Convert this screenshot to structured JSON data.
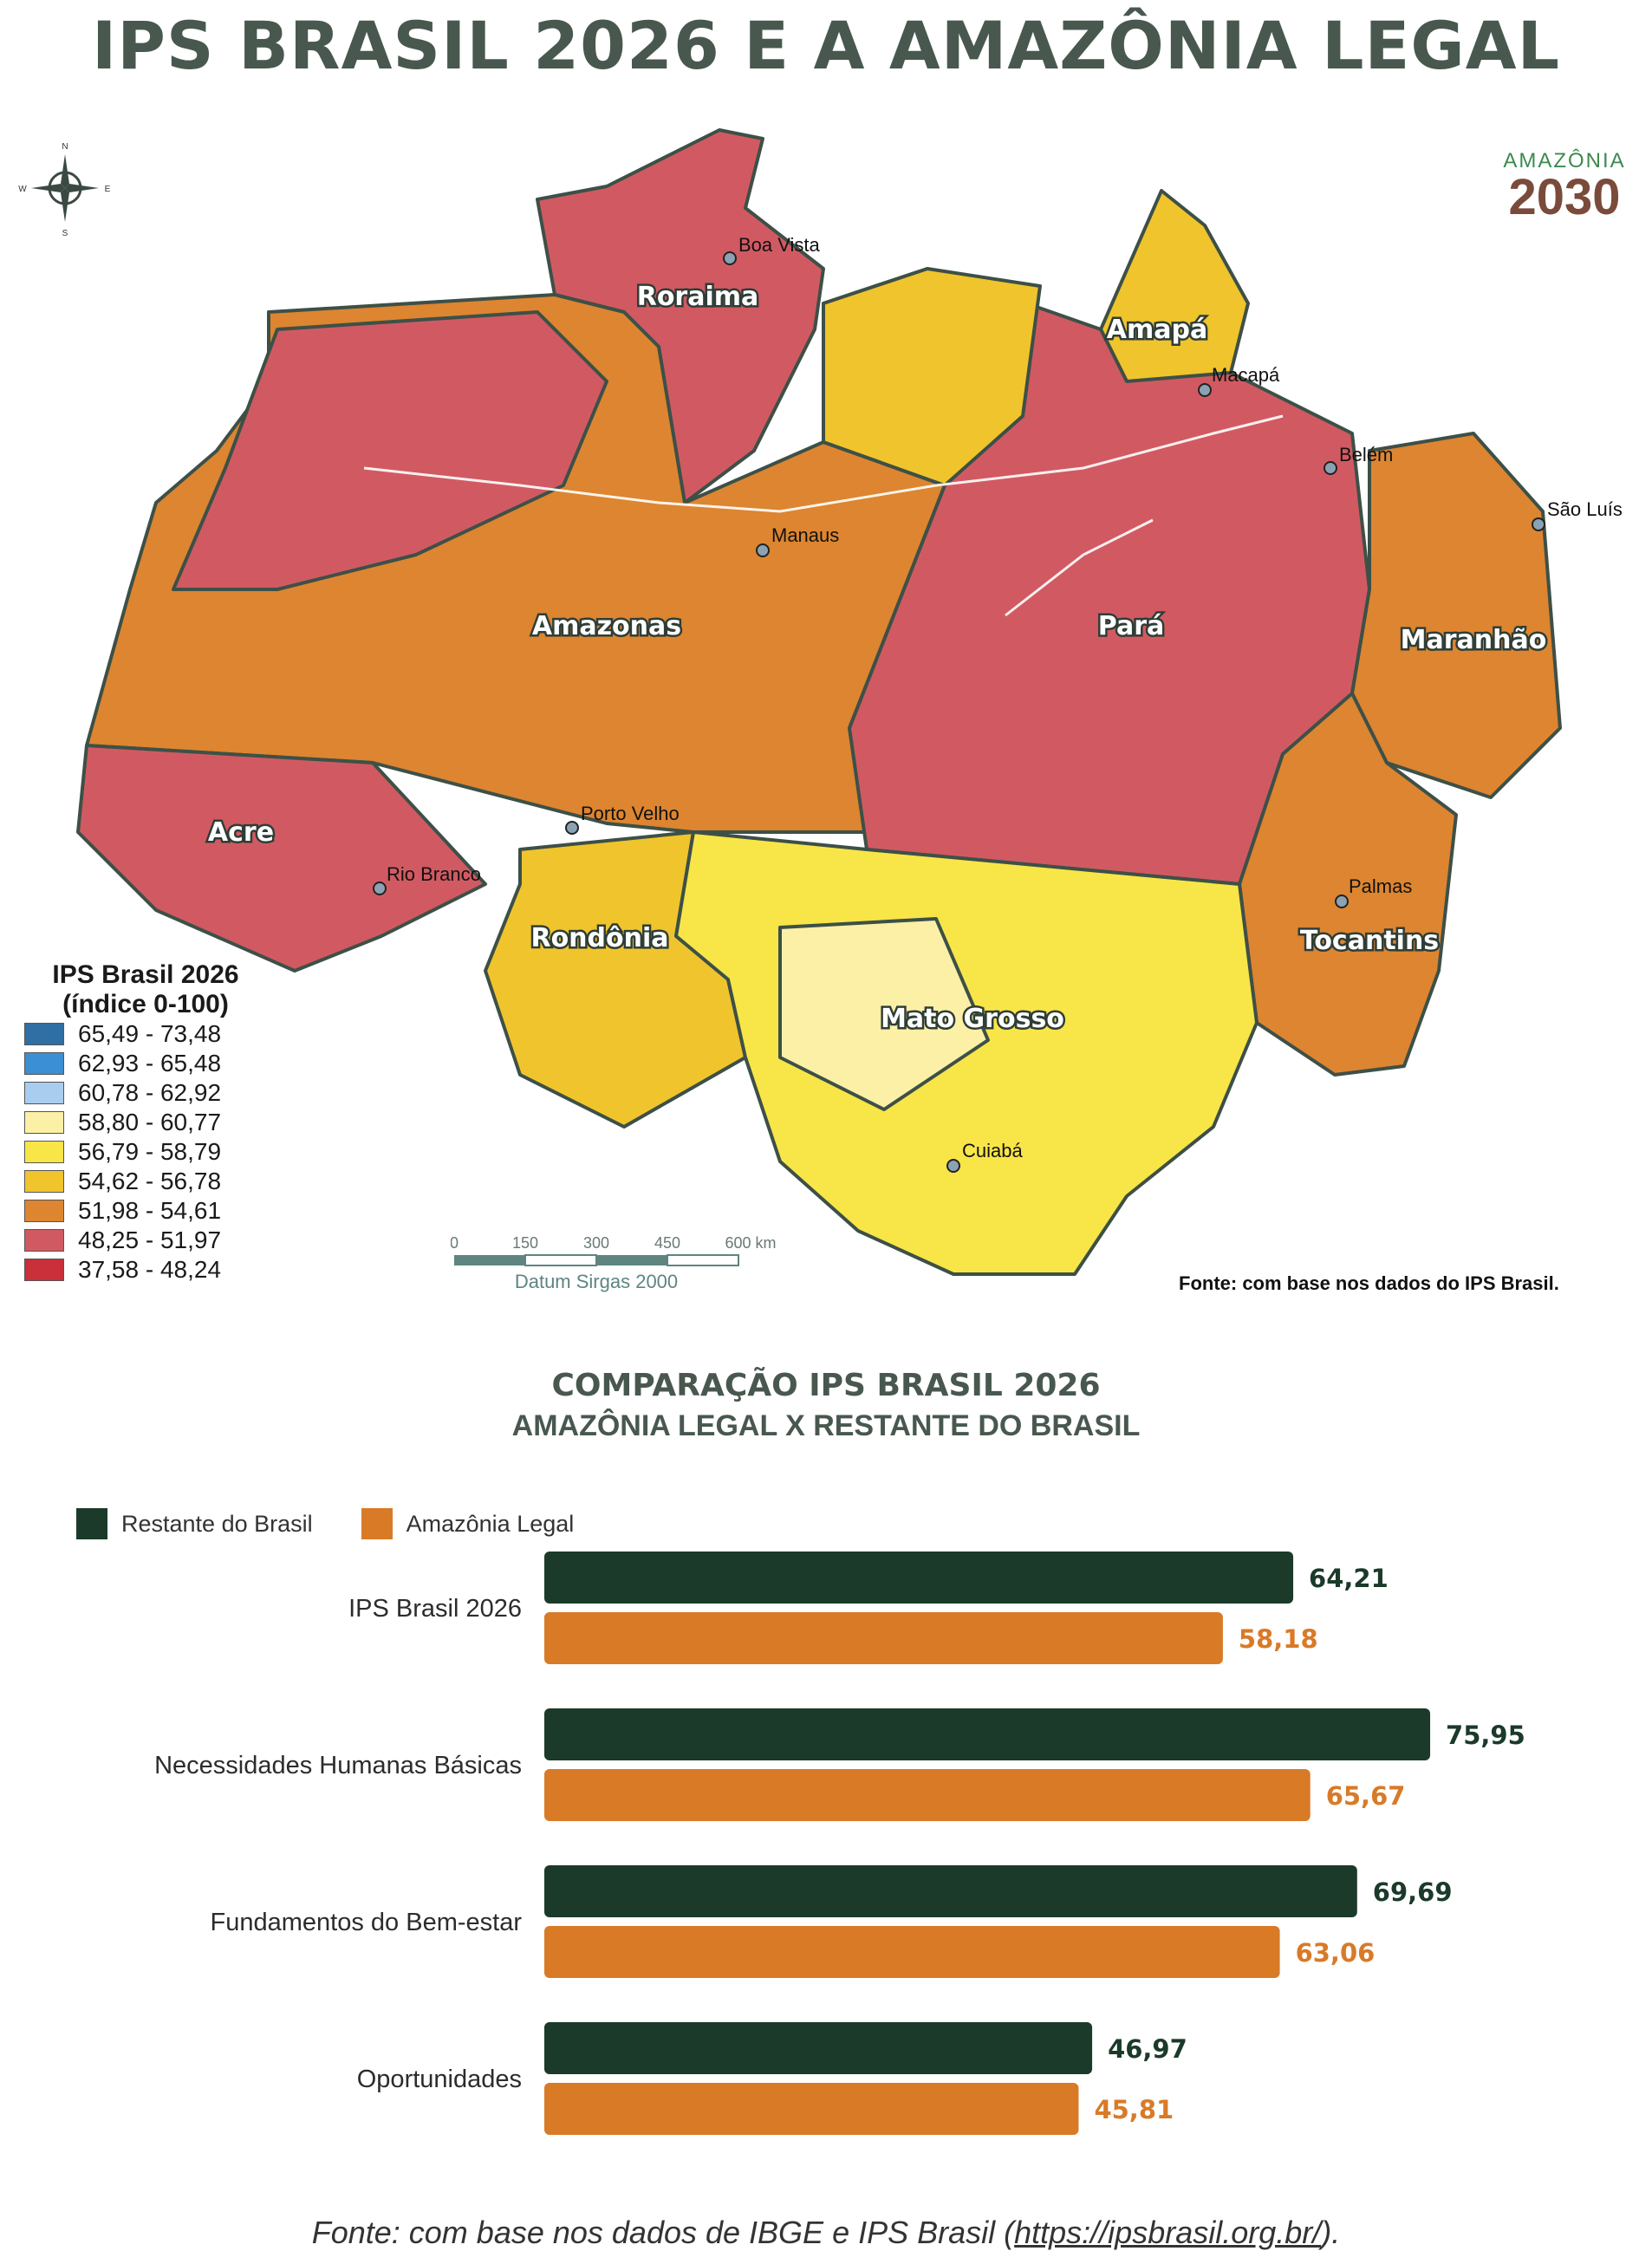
{
  "title": "IPS BRASIL 2026 E A AMAZÔNIA LEGAL",
  "logo": {
    "top": "AMAZÔNIA",
    "bottom": "2030"
  },
  "compass": {
    "n": "N",
    "s": "S",
    "e": "E",
    "w": "W"
  },
  "map": {
    "states": [
      "Roraima",
      "Amapá",
      "Amazonas",
      "Pará",
      "Maranhão",
      "Acre",
      "Rondônia",
      "Tocantins",
      "Mato Grosso"
    ],
    "cities": [
      "Boa Vista",
      "Macapá",
      "Belém",
      "São Luís",
      "Manaus",
      "Porto Velho",
      "Rio Branco",
      "Palmas",
      "Cuiabá"
    ],
    "legend_title_1": "IPS Brasil 2026",
    "legend_title_2": "(índice 0-100)",
    "legend": [
      {
        "label": "65,49 - 73,48",
        "color": "#2f6fa3"
      },
      {
        "label": "62,93 - 65,48",
        "color": "#3b8fd4"
      },
      {
        "label": "60,78 - 62,92",
        "color": "#a9cdee"
      },
      {
        "label": "58,80 - 60,77",
        "color": "#fbf0a6"
      },
      {
        "label": "56,79 - 58,79",
        "color": "#f8e548"
      },
      {
        "label": "54,62 - 56,78",
        "color": "#f0c42c"
      },
      {
        "label": "51,98 - 54,61",
        "color": "#dd8530"
      },
      {
        "label": "48,25 - 51,97",
        "color": "#d15a62"
      },
      {
        "label": "37,58 - 48,24",
        "color": "#c9303a"
      }
    ],
    "scale_ticks": [
      "0",
      "150",
      "300",
      "450",
      "600 km"
    ],
    "datum": "Datum Sirgas 2000",
    "source": "Fonte: com base nos dados do IPS Brasil."
  },
  "chart_title": "COMPARAÇÃO IPS BRASIL 2026",
  "chart_subtitle": "AMAZÔNIA LEGAL X RESTANTE DO BRASIL",
  "chart_data": {
    "type": "bar",
    "orientation": "horizontal",
    "categories": [
      "IPS Brasil 2026",
      "Necessidades Humanas Básicas",
      "Fundamentos do Bem-estar",
      "Oportunidades"
    ],
    "series": [
      {
        "name": "Restante do Brasil",
        "color": "#1b3a2a",
        "values": [
          64.21,
          75.95,
          69.69,
          46.97
        ],
        "labels": [
          "64,21",
          "75,95",
          "69,69",
          "46,97"
        ]
      },
      {
        "name": "Amazônia Legal",
        "color": "#d97a27",
        "values": [
          58.18,
          65.67,
          63.06,
          45.81
        ],
        "labels": [
          "58,18",
          "65,67",
          "63,06",
          "45,81"
        ]
      }
    ],
    "xlim": [
      0,
      81
    ],
    "legend_position": "top-left",
    "grid": false
  },
  "footer": {
    "prefix": "Fonte: com base nos dados de IBGE e IPS Brasil (",
    "link": "https://ipsbrasil.org.br/",
    "suffix": ")."
  }
}
